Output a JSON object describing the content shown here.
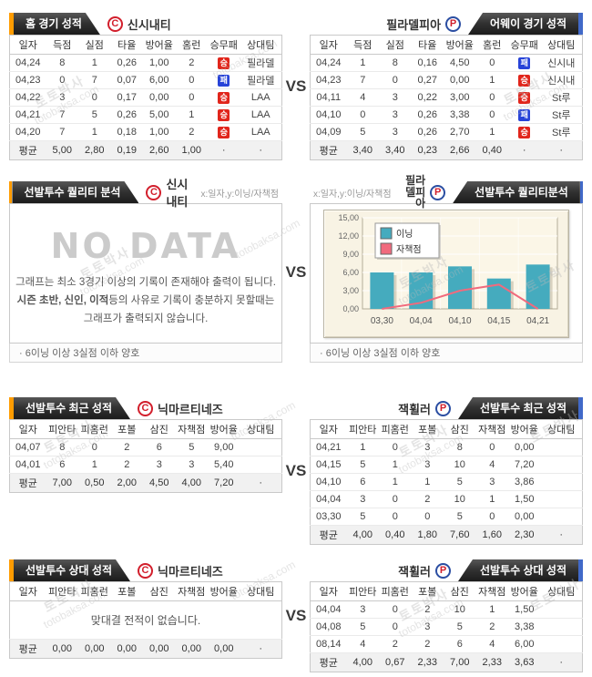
{
  "vs_label": "VS",
  "watermark": {
    "line1": "토토박사",
    "line2": "totobaksa.com"
  },
  "colors": {
    "accent_orange": "#ff9c00",
    "accent_blue": "#4169c8",
    "header_dark": "#2b2b2b",
    "win_badge": "#e1251b",
    "loss_badge": "#2743d8",
    "bar_teal": "#45abbe",
    "line_pink": "#f16a7d"
  },
  "s1": {
    "left": {
      "title": "홈 경기 성적",
      "team": "신시내티",
      "columns": [
        "일자",
        "득점",
        "실점",
        "타율",
        "방어율",
        "홈런",
        "승무패",
        "상대팀"
      ],
      "rows": [
        [
          "04,24",
          "8",
          "1",
          "0,26",
          "1,00",
          "2",
          "승",
          "필라델"
        ],
        [
          "04,23",
          "0",
          "7",
          "0,07",
          "6,00",
          "0",
          "패",
          "필라델"
        ],
        [
          "04,22",
          "3",
          "0",
          "0,17",
          "0,00",
          "0",
          "승",
          "LAA"
        ],
        [
          "04,21",
          "7",
          "5",
          "0,26",
          "5,00",
          "1",
          "승",
          "LAA"
        ],
        [
          "04,20",
          "7",
          "1",
          "0,18",
          "1,00",
          "2",
          "승",
          "LAA"
        ]
      ],
      "avg": [
        "평균",
        "5,00",
        "2,80",
        "0,19",
        "2,60",
        "1,00",
        "·",
        "·"
      ]
    },
    "right": {
      "title": "어웨이 경기 성적",
      "team": "필라델피아",
      "columns": [
        "일자",
        "득점",
        "실점",
        "타율",
        "방어율",
        "홈런",
        "승무패",
        "상대팀"
      ],
      "rows": [
        [
          "04,24",
          "1",
          "8",
          "0,16",
          "4,50",
          "0",
          "패",
          "신시내"
        ],
        [
          "04,23",
          "7",
          "0",
          "0,27",
          "0,00",
          "1",
          "승",
          "신시내"
        ],
        [
          "04,11",
          "4",
          "3",
          "0,22",
          "3,00",
          "0",
          "승",
          "St루"
        ],
        [
          "04,10",
          "0",
          "3",
          "0,26",
          "3,38",
          "0",
          "패",
          "St루"
        ],
        [
          "04,09",
          "5",
          "3",
          "0,26",
          "2,70",
          "1",
          "승",
          "St루"
        ]
      ],
      "avg": [
        "평균",
        "3,40",
        "3,40",
        "0,23",
        "2,66",
        "0,40",
        "·",
        "·"
      ]
    }
  },
  "s2": {
    "left": {
      "title": "선발투수 퀄리티 분석",
      "team": "신시내티",
      "axis_label": "x:일자,y:이닝/자책점",
      "nodata_big": "NO DATA",
      "nodata_line1": "그래프는 최소 3경기 이상의 기록이 존재해야 출력이 됩니다.",
      "nodata_line2_bold": "시즌 초반, 신인, 이적",
      "nodata_line2_rest": "등의 사유로 기록이 충분하지 못할때는",
      "nodata_line3": "그래프가 출력되지 않습니다.",
      "note": "· 6이닝 이상 3실점 이하 양호"
    },
    "right": {
      "title": "선발투수 퀄리티분석",
      "team": "필라델피아",
      "axis_label": "x:일자,y:이닝/자책점",
      "note": "· 6이닝 이상 3실점 이하 양호"
    }
  },
  "chart_data": {
    "type": "bar",
    "categories": [
      "03,30",
      "04,04",
      "04,10",
      "04,15",
      "04,21"
    ],
    "series": [
      {
        "name": "이닝",
        "type": "bar",
        "values": [
          6,
          6,
          7,
          5,
          7.3
        ],
        "color": "#45abbe"
      },
      {
        "name": "자책점",
        "type": "line",
        "values": [
          0,
          1,
          3,
          4,
          0
        ],
        "color": "#f16a7d"
      }
    ],
    "title": "선발투수 퀄리티분석 (필라델피아)",
    "xlabel": "일자",
    "ylabel": "이닝/자책점",
    "ylim": [
      0,
      15
    ],
    "yticks": [
      "0,00",
      "3,00",
      "6,00",
      "9,00",
      "12,00",
      "15,00"
    ],
    "grid": true,
    "legend_position": "top-left"
  },
  "s3": {
    "left": {
      "title": "선발투수 최근 성적",
      "team": "닉마르티네즈",
      "columns": [
        "일자",
        "피안타",
        "피홈런",
        "포볼",
        "삼진",
        "자책점",
        "방어율",
        "상대팀"
      ],
      "rows": [
        [
          "04,07",
          "8",
          "0",
          "2",
          "6",
          "5",
          "9,00",
          ""
        ],
        [
          "04,01",
          "6",
          "1",
          "2",
          "3",
          "3",
          "5,40",
          ""
        ]
      ],
      "avg": [
        "평균",
        "7,00",
        "0,50",
        "2,00",
        "4,50",
        "4,00",
        "7,20",
        "·"
      ]
    },
    "right": {
      "title": "선발투수 최근 성적",
      "team": "잭휠러",
      "columns": [
        "일자",
        "피안타",
        "피홈런",
        "포볼",
        "삼진",
        "자책점",
        "방어율",
        "상대팀"
      ],
      "rows": [
        [
          "04,21",
          "1",
          "0",
          "3",
          "8",
          "0",
          "0,00",
          ""
        ],
        [
          "04,15",
          "5",
          "1",
          "3",
          "10",
          "4",
          "7,20",
          ""
        ],
        [
          "04,10",
          "6",
          "1",
          "1",
          "5",
          "3",
          "3,86",
          ""
        ],
        [
          "04,04",
          "3",
          "0",
          "2",
          "10",
          "1",
          "1,50",
          ""
        ],
        [
          "03,30",
          "5",
          "0",
          "0",
          "5",
          "0",
          "0,00",
          ""
        ]
      ],
      "avg": [
        "평균",
        "4,00",
        "0,40",
        "1,80",
        "7,60",
        "1,60",
        "2,30",
        "·"
      ]
    }
  },
  "s4": {
    "left": {
      "title": "선발투수 상대 성적",
      "team": "닉마르티네즈",
      "columns": [
        "일자",
        "피안타",
        "피홈런",
        "포볼",
        "삼진",
        "자책점",
        "방어율",
        "상대팀"
      ],
      "message": "맞대결 전적이 없습니다.",
      "avg": [
        "평균",
        "0,00",
        "0,00",
        "0,00",
        "0,00",
        "0,00",
        "0,00",
        "·"
      ]
    },
    "right": {
      "title": "선발투수 상대 성적",
      "team": "잭휠러",
      "columns": [
        "일자",
        "피안타",
        "피홈런",
        "포볼",
        "삼진",
        "자책점",
        "방어율",
        "상대팀"
      ],
      "rows": [
        [
          "04,04",
          "3",
          "0",
          "2",
          "10",
          "1",
          "1,50",
          ""
        ],
        [
          "04,08",
          "5",
          "0",
          "3",
          "5",
          "2",
          "3,38",
          ""
        ],
        [
          "08,14",
          "4",
          "2",
          "2",
          "6",
          "4",
          "6,00",
          ""
        ]
      ],
      "avg": [
        "평균",
        "4,00",
        "0,67",
        "2,33",
        "7,00",
        "2,33",
        "3,63",
        "·"
      ]
    }
  }
}
